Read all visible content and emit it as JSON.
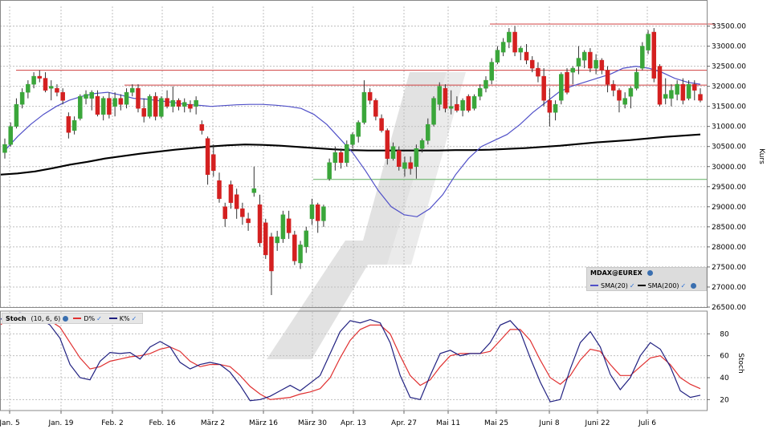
{
  "chart_data": [
    {
      "type": "candlestick",
      "title": "MDAX@EUREX",
      "ylabel": "Kurs",
      "ylim": [
        26500,
        33750
      ],
      "y_ticks": [
        26500,
        27000,
        27500,
        28000,
        28500,
        29000,
        29500,
        30000,
        30500,
        31000,
        31500,
        32000,
        32500,
        33000,
        33500
      ],
      "y_tick_labels": [
        "26500.00",
        "27000.00",
        "27500.00",
        "28000.00",
        "28500.00",
        "29000.00",
        "29500.00",
        "30000.00",
        "30500.00",
        "31000.00",
        "31500.00",
        "32000.00",
        "32500.00",
        "33000.00",
        "33500.00"
      ],
      "x_tick_labels": [
        "Jan. 5",
        "Jan. 19",
        "Feb. 2",
        "Feb. 16",
        "März 2",
        "März 16",
        "März 30",
        "Apr. 13",
        "Apr. 27",
        "Mai 11",
        "Mai 25",
        "Juni 8",
        "Juni 22",
        "Juli 6"
      ],
      "legend_position": "bottom-right",
      "grid": true,
      "series": [
        {
          "name": "SMA(20)",
          "color": "#5050c8"
        },
        {
          "name": "SMA(200)",
          "color": "#000000"
        }
      ],
      "sma20": [
        30400,
        30750,
        31050,
        31300,
        31500,
        31650,
        31750,
        31820,
        31850,
        31780,
        31700,
        31680,
        31640,
        31600,
        31550,
        31530,
        31500,
        31520,
        31540,
        31550,
        31550,
        31530,
        31500,
        31450,
        31300,
        31050,
        30700,
        30350,
        29900,
        29400,
        29000,
        28800,
        28750,
        28950,
        29300,
        29800,
        30200,
        30500,
        30650,
        30800,
        31050,
        31350,
        31600,
        31850,
        32000,
        32100,
        32200,
        32300,
        32450,
        32500,
        32450,
        32350,
        32200,
        32100,
        32050
      ],
      "sma200": [
        29800,
        29830,
        29880,
        29960,
        30050,
        30120,
        30200,
        30260,
        30320,
        30370,
        30420,
        30460,
        30500,
        30530,
        30550,
        30540,
        30520,
        30490,
        30460,
        30430,
        30410,
        30400,
        30400,
        30400,
        30400,
        30400,
        30410,
        30410,
        30420,
        30440,
        30460,
        30490,
        30520,
        30560,
        30600,
        30630,
        30660,
        30700,
        30740,
        30770,
        30800
      ],
      "candles": [
        {
          "o": 30350,
          "h": 30700,
          "l": 30200,
          "c": 30550
        },
        {
          "o": 30550,
          "h": 31100,
          "l": 30500,
          "c": 31000
        },
        {
          "o": 31000,
          "h": 31700,
          "l": 30950,
          "c": 31550
        },
        {
          "o": 31550,
          "h": 31950,
          "l": 31450,
          "c": 31850
        },
        {
          "o": 31850,
          "h": 32150,
          "l": 31700,
          "c": 32050
        },
        {
          "o": 32050,
          "h": 32350,
          "l": 31950,
          "c": 32250
        },
        {
          "o": 32250,
          "h": 32400,
          "l": 32100,
          "c": 32200
        },
        {
          "o": 32200,
          "h": 32350,
          "l": 31850,
          "c": 31900
        },
        {
          "o": 31950,
          "h": 32150,
          "l": 31650,
          "c": 32000
        },
        {
          "o": 31950,
          "h": 32050,
          "l": 31750,
          "c": 31850
        },
        {
          "o": 31850,
          "h": 31950,
          "l": 31550,
          "c": 31650
        },
        {
          "o": 31250,
          "h": 31350,
          "l": 30700,
          "c": 30850
        },
        {
          "o": 30900,
          "h": 31250,
          "l": 30800,
          "c": 31150
        },
        {
          "o": 31200,
          "h": 31800,
          "l": 31150,
          "c": 31750
        },
        {
          "o": 31700,
          "h": 31900,
          "l": 31550,
          "c": 31800
        },
        {
          "o": 31700,
          "h": 31900,
          "l": 31400,
          "c": 31850
        },
        {
          "o": 31750,
          "h": 31900,
          "l": 31250,
          "c": 31300
        },
        {
          "o": 31300,
          "h": 31750,
          "l": 31150,
          "c": 31700
        },
        {
          "o": 31700,
          "h": 31850,
          "l": 31200,
          "c": 31300
        },
        {
          "o": 31500,
          "h": 31850,
          "l": 31250,
          "c": 31700
        },
        {
          "o": 31700,
          "h": 31800,
          "l": 31400,
          "c": 31550
        },
        {
          "o": 31550,
          "h": 31950,
          "l": 31450,
          "c": 31850
        },
        {
          "o": 31850,
          "h": 32050,
          "l": 31750,
          "c": 31950
        },
        {
          "o": 31950,
          "h": 32050,
          "l": 31350,
          "c": 31450
        },
        {
          "o": 31450,
          "h": 31700,
          "l": 31100,
          "c": 31250
        },
        {
          "o": 31250,
          "h": 31800,
          "l": 31200,
          "c": 31750
        },
        {
          "o": 31750,
          "h": 31850,
          "l": 31150,
          "c": 31250
        },
        {
          "o": 31250,
          "h": 31750,
          "l": 31200,
          "c": 31700
        },
        {
          "o": 31700,
          "h": 31900,
          "l": 31450,
          "c": 31500
        },
        {
          "o": 31500,
          "h": 32000,
          "l": 31350,
          "c": 31650
        },
        {
          "o": 31650,
          "h": 31700,
          "l": 31400,
          "c": 31500
        },
        {
          "o": 31500,
          "h": 31700,
          "l": 31350,
          "c": 31600
        },
        {
          "o": 31550,
          "h": 31650,
          "l": 31350,
          "c": 31450
        },
        {
          "o": 31500,
          "h": 31750,
          "l": 31300,
          "c": 31650
        },
        {
          "o": 31050,
          "h": 31150,
          "l": 30800,
          "c": 30900
        },
        {
          "o": 30700,
          "h": 30750,
          "l": 29550,
          "c": 29800
        },
        {
          "o": 30300,
          "h": 30550,
          "l": 29750,
          "c": 29900
        },
        {
          "o": 29650,
          "h": 29850,
          "l": 29100,
          "c": 29200
        },
        {
          "o": 29000,
          "h": 29100,
          "l": 28500,
          "c": 28700
        },
        {
          "o": 29550,
          "h": 29650,
          "l": 28950,
          "c": 29100
        },
        {
          "o": 29300,
          "h": 29450,
          "l": 28700,
          "c": 28950
        },
        {
          "o": 28950,
          "h": 29100,
          "l": 28550,
          "c": 28750
        },
        {
          "o": 28700,
          "h": 28850,
          "l": 28400,
          "c": 28600
        },
        {
          "o": 29350,
          "h": 30000,
          "l": 29250,
          "c": 29450
        },
        {
          "o": 29050,
          "h": 29300,
          "l": 28000,
          "c": 28100
        },
        {
          "o": 28600,
          "h": 28700,
          "l": 27700,
          "c": 27800
        },
        {
          "o": 28250,
          "h": 28350,
          "l": 26800,
          "c": 27400
        },
        {
          "o": 28100,
          "h": 28400,
          "l": 27900,
          "c": 28250
        },
        {
          "o": 28200,
          "h": 28900,
          "l": 28100,
          "c": 28800
        },
        {
          "o": 28700,
          "h": 28900,
          "l": 28200,
          "c": 28350
        },
        {
          "o": 28300,
          "h": 28400,
          "l": 27550,
          "c": 27650
        },
        {
          "o": 27600,
          "h": 28150,
          "l": 27450,
          "c": 28050
        },
        {
          "o": 28000,
          "h": 28500,
          "l": 27850,
          "c": 28400
        },
        {
          "o": 28700,
          "h": 29200,
          "l": 28550,
          "c": 29050
        },
        {
          "o": 29050,
          "h": 29100,
          "l": 28350,
          "c": 28650
        },
        {
          "o": 28650,
          "h": 29050,
          "l": 28500,
          "c": 29000
        },
        {
          "o": 29700,
          "h": 30200,
          "l": 29650,
          "c": 30100
        },
        {
          "o": 30100,
          "h": 30500,
          "l": 29900,
          "c": 30350
        },
        {
          "o": 30350,
          "h": 30450,
          "l": 29950,
          "c": 30100
        },
        {
          "o": 30100,
          "h": 30650,
          "l": 30000,
          "c": 30550
        },
        {
          "o": 30550,
          "h": 30850,
          "l": 30450,
          "c": 30800
        },
        {
          "o": 30750,
          "h": 31150,
          "l": 30600,
          "c": 31100
        },
        {
          "o": 31100,
          "h": 32150,
          "l": 31050,
          "c": 31850
        },
        {
          "o": 31850,
          "h": 31950,
          "l": 31550,
          "c": 31650
        },
        {
          "o": 31650,
          "h": 31700,
          "l": 31150,
          "c": 31250
        },
        {
          "o": 31200,
          "h": 31300,
          "l": 30850,
          "c": 30900
        },
        {
          "o": 30900,
          "h": 30950,
          "l": 30050,
          "c": 30200
        },
        {
          "o": 30200,
          "h": 30600,
          "l": 30150,
          "c": 30500
        },
        {
          "o": 30400,
          "h": 30500,
          "l": 29900,
          "c": 30000
        },
        {
          "o": 29950,
          "h": 30250,
          "l": 29750,
          "c": 30100
        },
        {
          "o": 30100,
          "h": 30250,
          "l": 29800,
          "c": 29950
        },
        {
          "o": 30000,
          "h": 30550,
          "l": 29700,
          "c": 30450
        },
        {
          "o": 30450,
          "h": 30700,
          "l": 30350,
          "c": 30650
        },
        {
          "o": 30650,
          "h": 31200,
          "l": 30550,
          "c": 31050
        },
        {
          "o": 31050,
          "h": 31750,
          "l": 31000,
          "c": 31700
        },
        {
          "o": 31550,
          "h": 32100,
          "l": 31400,
          "c": 32000
        },
        {
          "o": 31950,
          "h": 32050,
          "l": 31350,
          "c": 31450
        },
        {
          "o": 31450,
          "h": 31900,
          "l": 31300,
          "c": 31500
        },
        {
          "o": 31550,
          "h": 31750,
          "l": 31350,
          "c": 31400
        },
        {
          "o": 31400,
          "h": 31700,
          "l": 31250,
          "c": 31650
        },
        {
          "o": 31750,
          "h": 31800,
          "l": 31350,
          "c": 31400
        },
        {
          "o": 31450,
          "h": 31800,
          "l": 31400,
          "c": 31750
        },
        {
          "o": 31750,
          "h": 32050,
          "l": 31650,
          "c": 31950
        },
        {
          "o": 31950,
          "h": 32250,
          "l": 31850,
          "c": 32150
        },
        {
          "o": 32150,
          "h": 32700,
          "l": 32050,
          "c": 32600
        },
        {
          "o": 32600,
          "h": 33000,
          "l": 32550,
          "c": 32900
        },
        {
          "o": 32850,
          "h": 33200,
          "l": 32750,
          "c": 33100
        },
        {
          "o": 33100,
          "h": 33450,
          "l": 32950,
          "c": 33350
        },
        {
          "o": 33350,
          "h": 33500,
          "l": 32750,
          "c": 32850
        },
        {
          "o": 32850,
          "h": 33000,
          "l": 32650,
          "c": 32950
        },
        {
          "o": 32850,
          "h": 33050,
          "l": 32550,
          "c": 32650
        },
        {
          "o": 32650,
          "h": 32750,
          "l": 32350,
          "c": 32450
        },
        {
          "o": 32450,
          "h": 32600,
          "l": 32100,
          "c": 32250
        },
        {
          "o": 32250,
          "h": 32450,
          "l": 31500,
          "c": 31650
        },
        {
          "o": 31650,
          "h": 31950,
          "l": 31000,
          "c": 31350
        },
        {
          "o": 31350,
          "h": 31650,
          "l": 31150,
          "c": 31550
        },
        {
          "o": 31650,
          "h": 32350,
          "l": 31550,
          "c": 32300
        },
        {
          "o": 32350,
          "h": 32450,
          "l": 31800,
          "c": 31850
        },
        {
          "o": 32350,
          "h": 32500,
          "l": 32050,
          "c": 32450
        },
        {
          "o": 32500,
          "h": 33000,
          "l": 32300,
          "c": 32700
        },
        {
          "o": 32650,
          "h": 32900,
          "l": 32450,
          "c": 32850
        },
        {
          "o": 32850,
          "h": 32950,
          "l": 32350,
          "c": 32450
        },
        {
          "o": 32450,
          "h": 32800,
          "l": 32300,
          "c": 32650
        },
        {
          "o": 32650,
          "h": 32700,
          "l": 32300,
          "c": 32400
        },
        {
          "o": 32400,
          "h": 32500,
          "l": 31850,
          "c": 32050
        },
        {
          "o": 32050,
          "h": 32150,
          "l": 31750,
          "c": 31900
        },
        {
          "o": 31900,
          "h": 31950,
          "l": 31350,
          "c": 31650
        },
        {
          "o": 31550,
          "h": 31850,
          "l": 31450,
          "c": 31700
        },
        {
          "o": 31750,
          "h": 32000,
          "l": 31450,
          "c": 31950
        },
        {
          "o": 31950,
          "h": 32450,
          "l": 31900,
          "c": 32350
        },
        {
          "o": 32450,
          "h": 33100,
          "l": 32400,
          "c": 33000
        },
        {
          "o": 32900,
          "h": 33400,
          "l": 32800,
          "c": 33300
        },
        {
          "o": 33350,
          "h": 33450,
          "l": 32100,
          "c": 32200
        },
        {
          "o": 32500,
          "h": 32550,
          "l": 31500,
          "c": 31550
        },
        {
          "o": 31700,
          "h": 32200,
          "l": 31550,
          "c": 31800
        },
        {
          "o": 31700,
          "h": 32050,
          "l": 31500,
          "c": 31900
        },
        {
          "o": 31800,
          "h": 32150,
          "l": 31650,
          "c": 32050
        },
        {
          "o": 32050,
          "h": 32200,
          "l": 31550,
          "c": 31650
        },
        {
          "o": 31700,
          "h": 32150,
          "l": 31650,
          "c": 32050
        },
        {
          "o": 32050,
          "h": 32150,
          "l": 31650,
          "c": 31900
        },
        {
          "o": 31800,
          "h": 31950,
          "l": 31600,
          "c": 31650
        }
      ],
      "support_resistance": [
        {
          "value": 33550,
          "color": "#d04040"
        },
        {
          "value": 32400,
          "color": "#d04040"
        },
        {
          "value": 32030,
          "color": "#d04040"
        },
        {
          "value": 29680,
          "color": "#60b060"
        }
      ]
    },
    {
      "type": "line",
      "title": "Stoch",
      "params": "(10, 6, 6)",
      "ylabel": "Stoch",
      "ylim": [
        10,
        100
      ],
      "y_ticks": [
        20,
        40,
        60,
        80
      ],
      "y_tick_labels": [
        "20",
        "40",
        "60",
        "80"
      ],
      "series": [
        {
          "name": "D%",
          "color": "#e03030",
          "values": [
            88,
            94,
            98,
            98,
            96,
            92,
            86,
            72,
            58,
            48,
            50,
            55,
            57,
            59,
            60,
            62,
            66,
            68,
            64,
            55,
            50,
            52,
            52,
            50,
            42,
            32,
            25,
            20,
            21,
            22,
            25,
            27,
            30,
            40,
            58,
            74,
            84,
            88,
            88,
            80,
            60,
            42,
            33,
            38,
            50,
            60,
            62,
            62,
            62,
            64,
            74,
            84,
            84,
            74,
            56,
            40,
            34,
            42,
            56,
            66,
            64,
            52,
            42,
            42,
            50,
            58,
            60,
            52,
            40,
            34,
            30
          ]
        },
        {
          "name": "K%",
          "color": "#202080",
          "values": [
            93,
            98,
            99,
            98,
            94,
            88,
            76,
            52,
            40,
            38,
            55,
            63,
            62,
            63,
            57,
            68,
            73,
            68,
            54,
            48,
            52,
            54,
            52,
            45,
            33,
            19,
            20,
            23,
            28,
            33,
            28,
            35,
            42,
            62,
            82,
            92,
            90,
            93,
            90,
            72,
            42,
            22,
            20,
            42,
            62,
            65,
            60,
            62,
            62,
            72,
            88,
            92,
            82,
            58,
            36,
            18,
            20,
            48,
            72,
            82,
            68,
            43,
            29,
            40,
            60,
            72,
            66,
            50,
            28,
            22,
            24
          ]
        }
      ]
    }
  ],
  "legend": {
    "title": "MDAX@EUREX",
    "sma20": "SMA(20)",
    "sma200": "SMA(200)"
  },
  "stoch_legend": {
    "title": "Stoch",
    "params": "(10, 6, 6)",
    "d": "D%",
    "k": "K%"
  },
  "colors": {
    "up": "#3aa63a",
    "down": "#d42020",
    "grid": "#bfbfbf",
    "watermark": "#e2e2e2"
  }
}
